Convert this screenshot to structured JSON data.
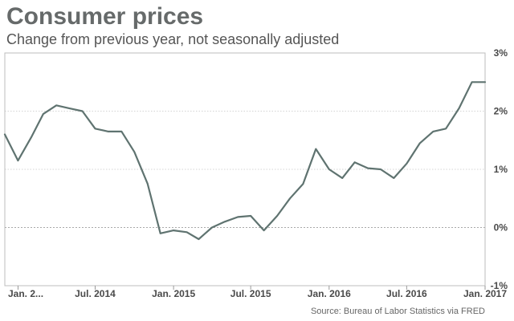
{
  "chart_data": {
    "type": "line",
    "title": "Consumer prices",
    "subtitle": "Change from previous year, not seasonally adjusted",
    "source": "Source: Bureau of Labor Statistics via FRED",
    "xlabel": "",
    "ylabel": "",
    "ylim": [
      -1,
      3
    ],
    "y_ticks": [
      3,
      2,
      1,
      0,
      -1
    ],
    "y_tick_labels": [
      "3%",
      "2%",
      "1%",
      "0%",
      "-1%"
    ],
    "x_ticks": [
      {
        "date": "2014-01",
        "label": "Jan. 2..."
      },
      {
        "date": "2014-07",
        "label": "Jul. 2014"
      },
      {
        "date": "2015-01",
        "label": "Jan. 2015"
      },
      {
        "date": "2015-07",
        "label": "Jul. 2015"
      },
      {
        "date": "2016-01",
        "label": "Jan. 2016"
      },
      {
        "date": "2016-07",
        "label": "Jul. 2016"
      },
      {
        "date": "2017-01",
        "label": "Jan. 2017"
      }
    ],
    "grid": true,
    "colors": {
      "line": "#5f7370",
      "title": "#666a6a"
    },
    "x": [
      "2013-12",
      "2014-01",
      "2014-02",
      "2014-03",
      "2014-04",
      "2014-05",
      "2014-06",
      "2014-07",
      "2014-08",
      "2014-09",
      "2014-10",
      "2014-11",
      "2014-12",
      "2015-01",
      "2015-02",
      "2015-03",
      "2015-04",
      "2015-05",
      "2015-06",
      "2015-07",
      "2015-08",
      "2015-09",
      "2015-10",
      "2015-11",
      "2015-12",
      "2016-01",
      "2016-02",
      "2016-03",
      "2016-04",
      "2016-05",
      "2016-06",
      "2016-07",
      "2016-08",
      "2016-09",
      "2016-10",
      "2016-11",
      "2016-12",
      "2017-01"
    ],
    "series": [
      {
        "values": [
          1.6,
          1.15,
          1.55,
          1.95,
          2.1,
          2.05,
          2.0,
          1.7,
          1.65,
          1.65,
          1.3,
          0.75,
          -0.1,
          -0.05,
          -0.08,
          -0.2,
          0.0,
          0.1,
          0.18,
          0.2,
          -0.05,
          0.2,
          0.5,
          0.75,
          1.35,
          1.0,
          0.85,
          1.12,
          1.02,
          1.0,
          0.85,
          1.1,
          1.45,
          1.65,
          1.7,
          2.05,
          2.5,
          2.5
        ]
      }
    ]
  }
}
